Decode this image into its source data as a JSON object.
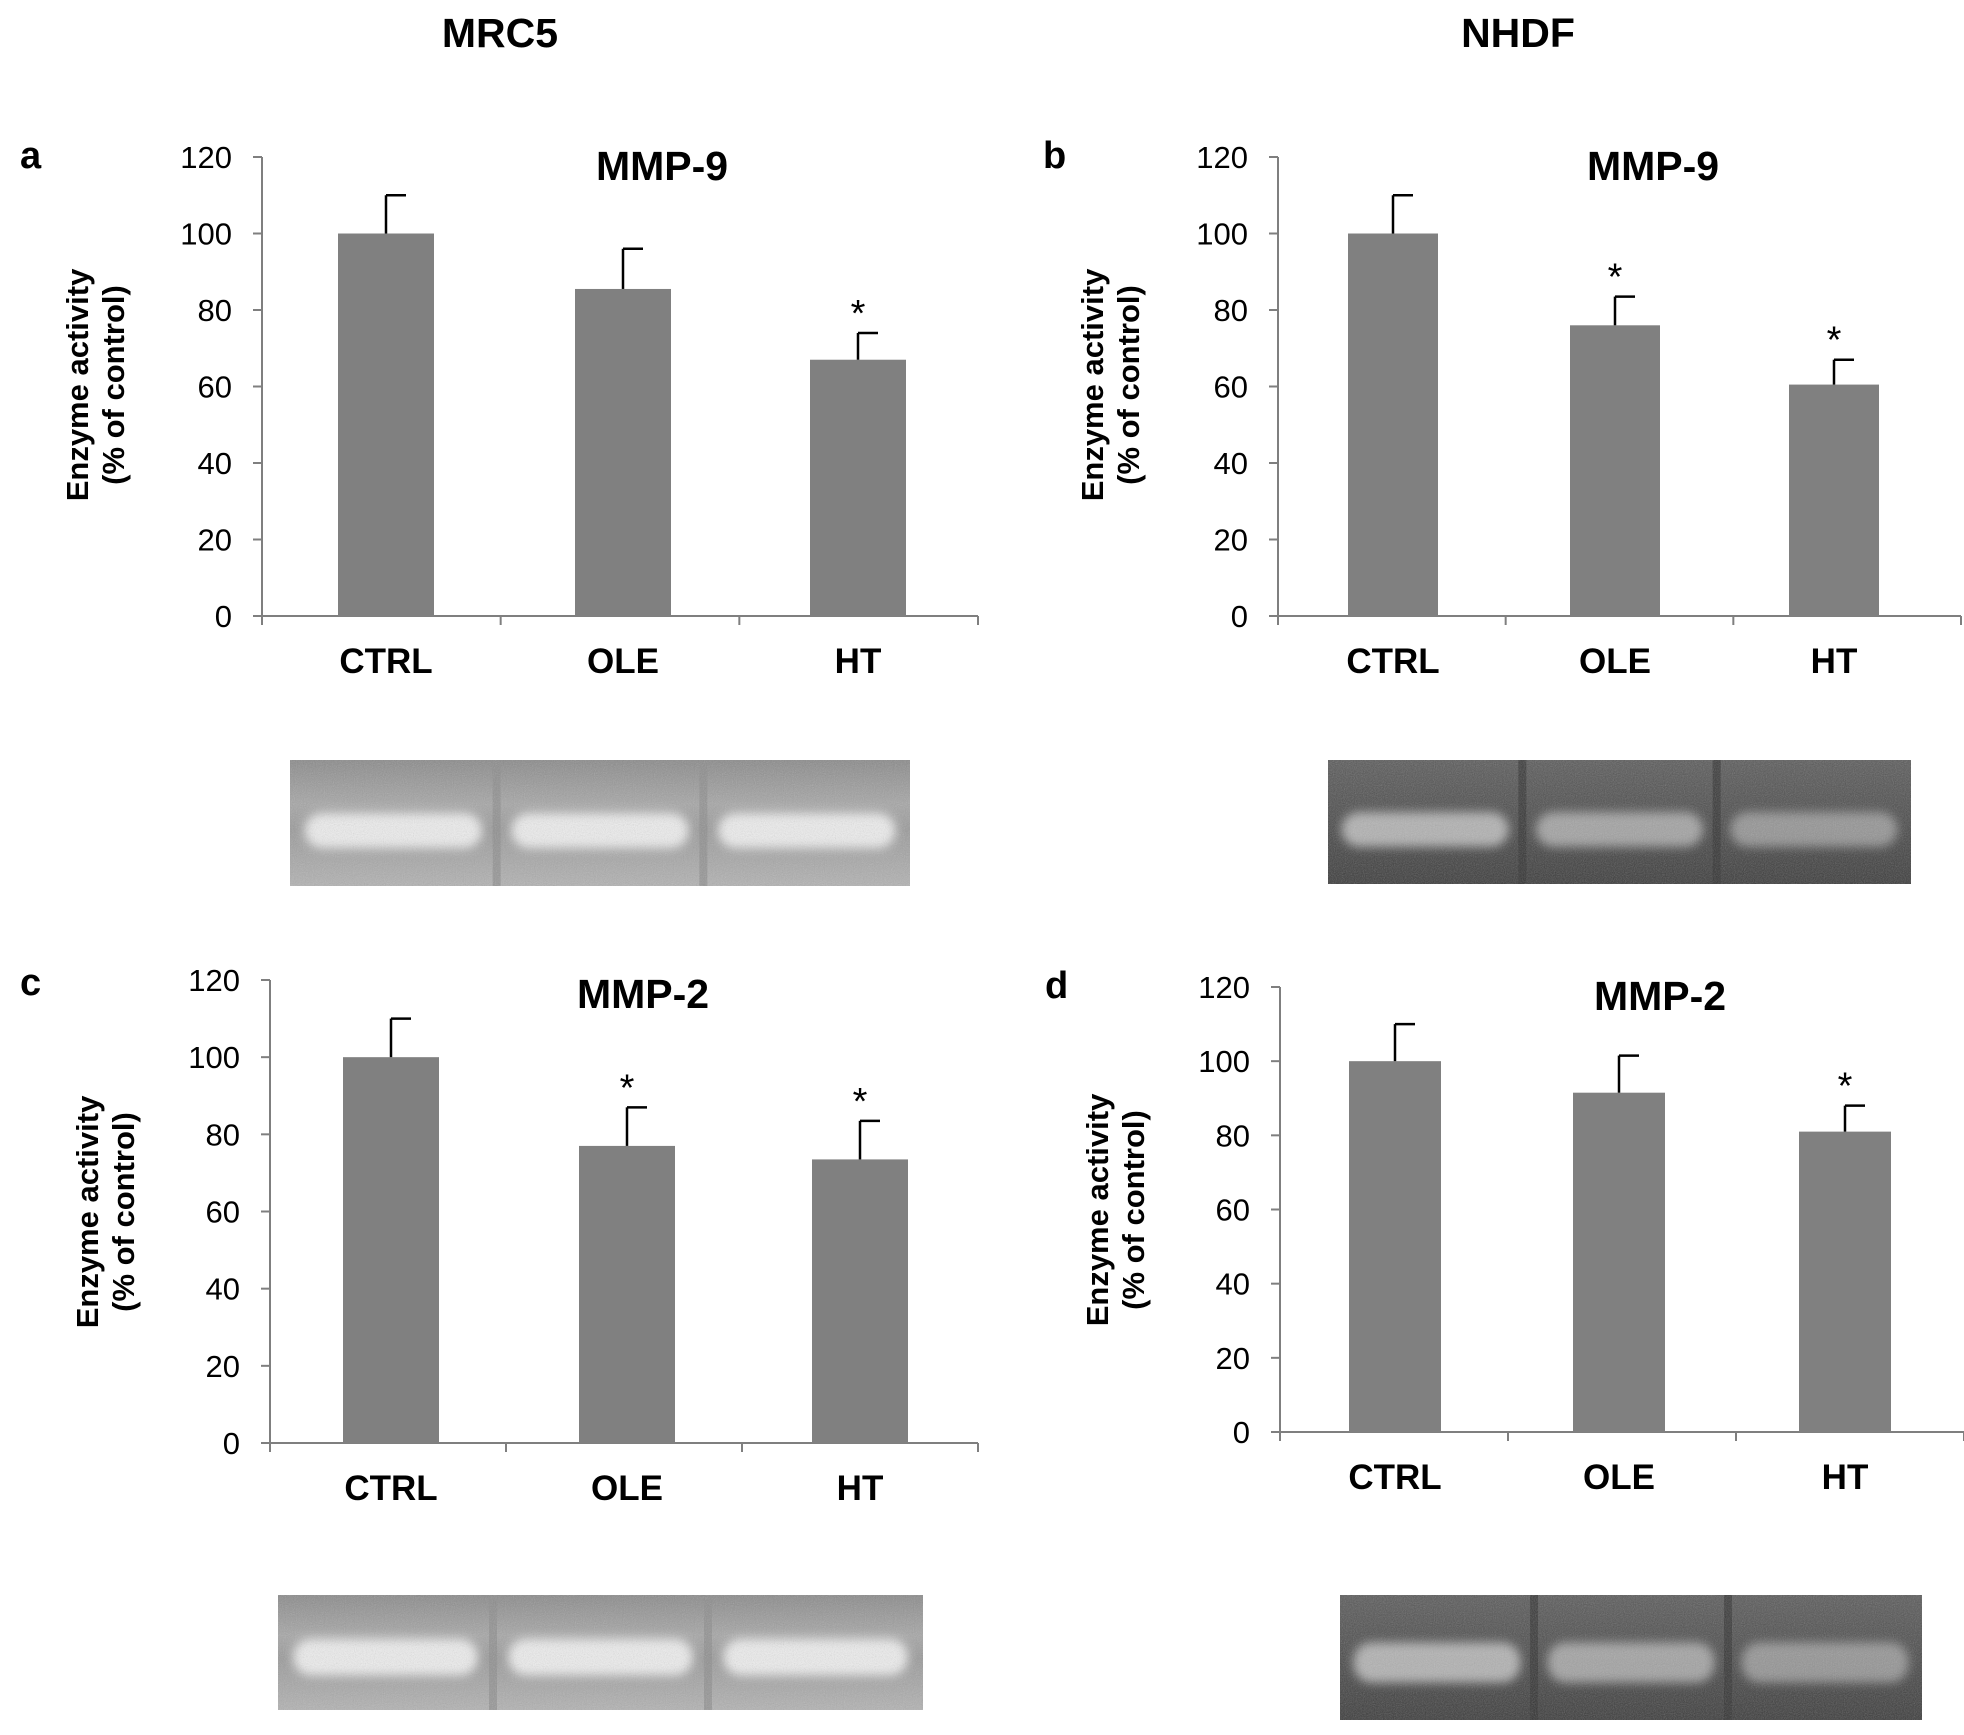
{
  "figure": {
    "column_titles": [
      "MRC5",
      "NHDF"
    ]
  },
  "chart_data": [
    {
      "panel": "a",
      "type": "bar",
      "title": "MMP-9",
      "ylabel_line1": "Enzyme activity",
      "ylabel_line2": "(% of control)",
      "categories": [
        "CTRL",
        "OLE",
        "HT"
      ],
      "values": [
        100,
        85.5,
        67
      ],
      "errors": [
        10,
        10.5,
        7
      ],
      "significance": [
        "",
        "",
        "*"
      ],
      "ylim": [
        0,
        120
      ],
      "yticks": [
        0,
        20,
        40,
        60,
        80,
        100,
        120
      ],
      "bar_color": "#808080",
      "grid": false,
      "gel_lanes": 3,
      "gel_style": "light"
    },
    {
      "panel": "b",
      "type": "bar",
      "title": "MMP-9",
      "ylabel_line1": "Enzyme activity",
      "ylabel_line2": "(% of control)",
      "categories": [
        "CTRL",
        "OLE",
        "HT"
      ],
      "values": [
        100,
        76,
        60.5
      ],
      "errors": [
        10,
        7.5,
        6.5
      ],
      "significance": [
        "",
        "*",
        "*"
      ],
      "ylim": [
        0,
        120
      ],
      "yticks": [
        0,
        20,
        40,
        60,
        80,
        100,
        120
      ],
      "bar_color": "#808080",
      "grid": false,
      "gel_lanes": 3,
      "gel_style": "dark"
    },
    {
      "panel": "c",
      "type": "bar",
      "title": "MMP-2",
      "ylabel_line1": "Enzyme activity",
      "ylabel_line2": "(% of control)",
      "categories": [
        "CTRL",
        "OLE",
        "HT"
      ],
      "values": [
        100,
        77,
        73.5
      ],
      "errors": [
        10,
        10,
        10
      ],
      "significance": [
        "",
        "*",
        "*"
      ],
      "ylim": [
        0,
        120
      ],
      "yticks": [
        0,
        20,
        40,
        60,
        80,
        100,
        120
      ],
      "bar_color": "#808080",
      "grid": false,
      "gel_lanes": 3,
      "gel_style": "light"
    },
    {
      "panel": "d",
      "type": "bar",
      "title": "MMP-2",
      "ylabel_line1": "Enzyme activity",
      "ylabel_line2": "(% of control)",
      "categories": [
        "CTRL",
        "OLE",
        "HT"
      ],
      "values": [
        100,
        91.5,
        81
      ],
      "errors": [
        10,
        10,
        7
      ],
      "significance": [
        "",
        "",
        "*"
      ],
      "ylim": [
        0,
        120
      ],
      "yticks": [
        0,
        20,
        40,
        60,
        80,
        100,
        120
      ],
      "bar_color": "#808080",
      "grid": false,
      "gel_lanes": 3,
      "gel_style": "dark"
    }
  ]
}
